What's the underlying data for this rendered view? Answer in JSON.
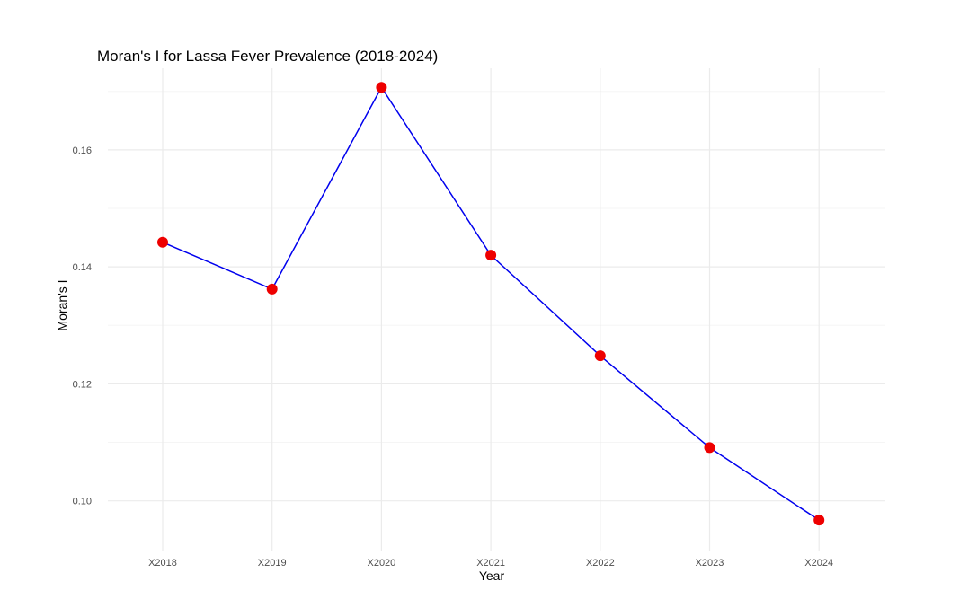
{
  "chart_data": {
    "type": "line",
    "title": "Moran's I for Lassa Fever Prevalence (2018-2024)",
    "xlabel": "Year",
    "ylabel": "Moran's I",
    "categories": [
      "X2018",
      "X2019",
      "X2020",
      "X2021",
      "X2022",
      "X2023",
      "X2024"
    ],
    "series": [
      {
        "values": [
          0.1442,
          0.1362,
          0.1707,
          0.142,
          0.1248,
          0.1091,
          0.0967
        ]
      }
    ],
    "ylim": [
      0.0935,
      0.1715
    ],
    "yticks": [
      0.1,
      0.12,
      0.14,
      0.16
    ],
    "ytick_labels": [
      "0.10",
      "0.12",
      "0.14",
      "0.16"
    ],
    "grid": true,
    "legend": "none",
    "colors": {
      "line": "#0000ee",
      "point": "#ee0000",
      "grid_major": "#ebebeb",
      "grid_minor": "#f5f5f5"
    }
  }
}
